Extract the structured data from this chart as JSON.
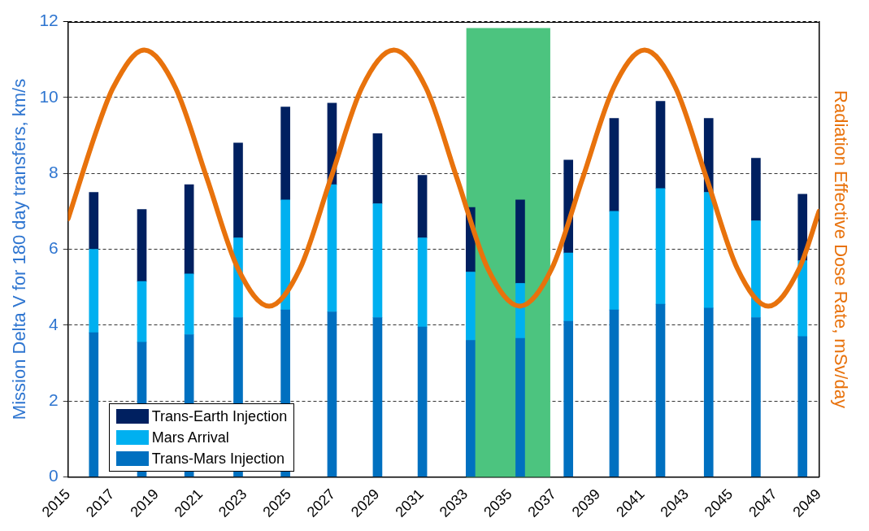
{
  "chart_data": {
    "type": "bar",
    "stacked": true,
    "xlabel": null,
    "ylabel": "Mission Delta V for 180 day transfers, km/s",
    "y2label": "Radiation Effective Dose Rate, mSv/day",
    "x": [
      2016.16,
      2018.34,
      2020.48,
      2022.7,
      2024.84,
      2026.95,
      2029.01,
      2031.04,
      2033.22,
      2035.47,
      2037.65,
      2039.72,
      2041.82,
      2044.0,
      2046.14,
      2048.25
    ],
    "series": [
      {
        "name": "Trans-Mars Injection",
        "color": "#0070c0",
        "values": [
          3.8,
          3.55,
          3.75,
          4.2,
          4.4,
          4.35,
          4.2,
          3.95,
          3.6,
          3.65,
          4.1,
          4.4,
          4.55,
          4.45,
          4.2,
          3.7
        ]
      },
      {
        "name": "Mars Arrival",
        "color": "#00b0f0",
        "values": [
          2.2,
          1.6,
          1.6,
          2.1,
          2.9,
          3.35,
          3.0,
          2.35,
          1.8,
          1.45,
          1.8,
          2.6,
          3.05,
          3.05,
          2.55,
          2.0
        ]
      },
      {
        "name": "Trans-Earth Injection",
        "color": "#002060",
        "values": [
          1.5,
          1.9,
          2.35,
          2.5,
          2.45,
          2.15,
          1.85,
          1.65,
          1.7,
          2.2,
          2.45,
          2.45,
          2.3,
          1.95,
          1.65,
          1.75
        ]
      },
      {
        "type": "line",
        "color": "#e8720c",
        "x": [
          2015,
          2016.33,
          2017.04,
          2018.45,
          2019.86,
          2021.28,
          2022.69,
          2024.1,
          2025.5,
          2026.9,
          2028.3,
          2029.75,
          2031.2,
          2032.6,
          2034.0,
          2035.45,
          2036.9,
          2038.3,
          2039.7,
          2041.1,
          2042.5,
          2043.9,
          2045.3,
          2046.7,
          2048.1,
          2049
        ],
        "values": [
          6.8,
          9.2,
          10.26,
          11.25,
          10.26,
          7.88,
          5.49,
          4.5,
          5.49,
          7.88,
          10.26,
          11.25,
          10.26,
          7.88,
          5.49,
          4.5,
          5.49,
          7.88,
          10.26,
          11.25,
          10.26,
          7.88,
          5.49,
          4.5,
          5.49,
          7.0
        ]
      }
    ],
    "bands": [
      {
        "axis": "x",
        "from": 2033.03,
        "to": 2036.83,
        "color": "#4cc47f"
      }
    ],
    "xlim": [
      2015,
      2049
    ],
    "xticks": [
      2015,
      2017,
      2019,
      2021,
      2023,
      2025,
      2027,
      2029,
      2031,
      2033,
      2035,
      2037,
      2039,
      2041,
      2043,
      2045,
      2047,
      2049
    ],
    "ylim": [
      0,
      12
    ],
    "yticks": [
      0,
      2,
      4,
      6,
      8,
      10,
      12
    ],
    "grid": "y",
    "legend": "bottom left",
    "marker": "none",
    "line_style": "solid"
  }
}
